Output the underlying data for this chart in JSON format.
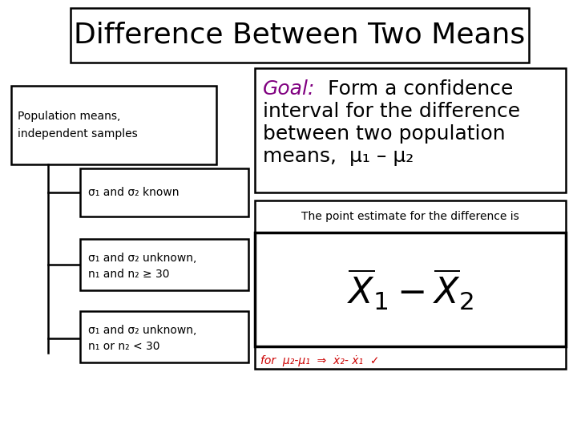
{
  "title": "Difference Between Two Means",
  "title_fontsize": 26,
  "background_color": "#ffffff",
  "box1_text": "Population means,\nindependent samples",
  "box2_text": "σ₁ and σ₂ known",
  "box3_text": "σ₁ and σ₂ unknown,\nn₁ and n₂ ≥ 30",
  "box4_text": "σ₁ and σ₂ unknown,\nn₁ or n₂ < 30",
  "goal_word": "Goal:",
  "goal_rest_line1": "  Form a confidence",
  "goal_line2": "interval for the difference",
  "goal_line3": "between two population",
  "goal_line4": "means,  μ₁ – μ₂",
  "point_est_text": "The point estimate for the difference is",
  "handwritten_text": "for  μ₂ - μ₁   ⇒   ẋ₂– ẋ₁  ✓",
  "goal_color": "#800080",
  "handwritten_color": "#cc0000",
  "black": "#000000",
  "text_font": "DejaVu Sans",
  "title_font": "DejaVu Sans"
}
